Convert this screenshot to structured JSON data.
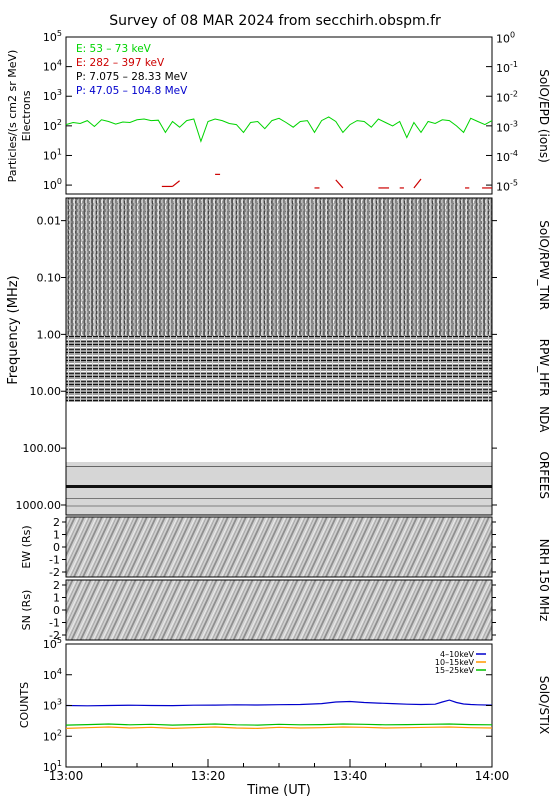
{
  "title": "Survey of 08 MAR 2024 from secchirh.obspm.fr",
  "xlabel": "Time (UT)",
  "x_ticks": [
    "13:00",
    "13:20",
    "13:40",
    "14:00"
  ],
  "colors": {
    "green": "#00d400",
    "red": "#cc0000",
    "black": "#000000",
    "blue": "#0000cc",
    "orange": "#ff9900",
    "stix_green": "#00c000"
  },
  "chart_data": [
    {
      "type": "line",
      "panel": "epd",
      "ylabel": "Particles/(s cm2 sr MeV)",
      "ylabel2": "Electrons",
      "right_label": "SolO/EPD (ions)",
      "y_log": true,
      "ylim": [
        0.5,
        100000
      ],
      "y_ticks": [
        "10^0",
        "10^1",
        "10^2",
        "10^3",
        "10^4",
        "10^5"
      ],
      "y2_ticks": [
        "10^-5",
        "10^-4",
        "10^-3",
        "10^-2",
        "10^-1",
        "10^0"
      ],
      "legend": [
        {
          "label": "E: 53 – 73 keV",
          "color": "#00d400"
        },
        {
          "label": "E: 282 – 397 keV",
          "color": "#cc0000"
        },
        {
          "label": "P: 7.075 – 28.33 MeV",
          "color": "#000000"
        },
        {
          "label": "P: 47.05 – 104.8 MeV",
          "color": "#0000cc"
        }
      ],
      "series": [
        {
          "name": "E: 53 – 73 keV",
          "color": "#00d400",
          "x_minutes": [
            0,
            1,
            2,
            3,
            4,
            5,
            6,
            7,
            8,
            9,
            10,
            11,
            12,
            13,
            14,
            15,
            16,
            17,
            18,
            19,
            20,
            21,
            22,
            23,
            24,
            25,
            26,
            27,
            28,
            29,
            30,
            31,
            32,
            33,
            34,
            35,
            36,
            37,
            38,
            39,
            40,
            41,
            42,
            43,
            44,
            45,
            46,
            47,
            48,
            49,
            50,
            51,
            52,
            53,
            54,
            55,
            56,
            57,
            58,
            59,
            60
          ],
          "values": [
            110,
            130,
            120,
            150,
            95,
            160,
            140,
            115,
            135,
            130,
            160,
            170,
            150,
            155,
            60,
            140,
            90,
            150,
            170,
            30,
            140,
            170,
            150,
            120,
            110,
            60,
            130,
            140,
            80,
            150,
            180,
            130,
            90,
            140,
            150,
            60,
            150,
            200,
            140,
            60,
            110,
            150,
            140,
            90,
            170,
            130,
            100,
            140,
            40,
            130,
            60,
            140,
            120,
            160,
            150,
            100,
            60,
            180,
            140,
            110,
            150
          ]
        },
        {
          "name": "E: 282 – 397 keV",
          "color": "#cc0000",
          "segments": [
            {
              "x": [
                13.5,
                15
              ],
              "y": [
                0.9,
                0.9
              ]
            },
            {
              "x": [
                15,
                16
              ],
              "y": [
                0.9,
                1.4
              ]
            },
            {
              "x": [
                21,
                21.7
              ],
              "y": [
                2.3,
                2.3
              ]
            },
            {
              "x": [
                35,
                35.7
              ],
              "y": [
                0.8,
                0.8
              ]
            },
            {
              "x": [
                38,
                39
              ],
              "y": [
                1.5,
                0.8
              ]
            },
            {
              "x": [
                44,
                45.5
              ],
              "y": [
                0.8,
                0.8
              ]
            },
            {
              "x": [
                47,
                47.6
              ],
              "y": [
                0.8,
                0.8
              ]
            },
            {
              "x": [
                49,
                50
              ],
              "y": [
                0.8,
                1.6
              ]
            },
            {
              "x": [
                56.2,
                56.8
              ],
              "y": [
                0.8,
                0.8
              ]
            },
            {
              "x": [
                58.6,
                60
              ],
              "y": [
                0.8,
                0.8
              ]
            }
          ]
        }
      ]
    },
    {
      "type": "heatmap",
      "panel": "spectrogram",
      "ylabel": "Frequency (MHz)",
      "y_log": true,
      "ylim": [
        1500,
        0.004
      ],
      "y_ticks": [
        "0.01",
        "0.10",
        "1.00",
        "10.00",
        "100.00",
        "1000.00"
      ],
      "bands": [
        {
          "label": "SolO/RPW_TNR",
          "f_range": [
            0.004,
            0.92
          ]
        },
        {
          "label": "RPW_HFR",
          "f_range": [
            0.92,
            16
          ]
        },
        {
          "label": "NDA",
          "f_range": [
            16,
            60
          ]
        },
        {
          "label": "ORFEES",
          "f_range": [
            60,
            1500
          ]
        }
      ]
    },
    {
      "type": "heatmap",
      "panel": "nrh_ew",
      "ylabel": "EW (Rs)",
      "ylim": [
        -2.4,
        2.4
      ],
      "y_ticks": [
        "2",
        "1",
        "0",
        "-1",
        "-2"
      ],
      "right_label": "NRH 150 MHz"
    },
    {
      "type": "heatmap",
      "panel": "nrh_sn",
      "ylabel": "SN (Rs)",
      "ylim": [
        -2.4,
        2.4
      ],
      "y_ticks": [
        "2",
        "1",
        "0",
        "-1",
        "-2"
      ]
    },
    {
      "type": "line",
      "panel": "stix",
      "ylabel": "COUNTS",
      "right_label": "SolO/STIX",
      "y_log": true,
      "ylim": [
        10,
        100000
      ],
      "y_ticks": [
        "10^1",
        "10^2",
        "10^3",
        "10^4",
        "10^5"
      ],
      "series": [
        {
          "name": "4–10keV",
          "color": "#0000cc",
          "x_minutes": [
            0,
            3,
            6,
            9,
            12,
            15,
            18,
            21,
            24,
            27,
            30,
            33,
            36,
            38,
            40,
            42,
            44,
            46,
            48,
            50,
            52,
            53,
            54,
            55,
            56,
            57,
            58,
            60
          ],
          "values": [
            1000,
            980,
            1000,
            1020,
            1000,
            990,
            1020,
            1030,
            1050,
            1040,
            1060,
            1080,
            1150,
            1300,
            1350,
            1250,
            1200,
            1150,
            1100,
            1080,
            1100,
            1300,
            1500,
            1250,
            1120,
            1080,
            1050,
            1030
          ]
        },
        {
          "name": "10–15keV",
          "color": "#ff9900",
          "x_minutes": [
            0,
            3,
            6,
            9,
            12,
            15,
            18,
            21,
            24,
            27,
            30,
            33,
            36,
            39,
            42,
            45,
            48,
            51,
            54,
            57,
            60
          ],
          "values": [
            180,
            190,
            200,
            185,
            195,
            180,
            190,
            200,
            185,
            180,
            195,
            185,
            190,
            200,
            195,
            185,
            190,
            195,
            200,
            190,
            185
          ]
        },
        {
          "name": "15–25keV",
          "color": "#00c000",
          "x_minutes": [
            0,
            3,
            6,
            9,
            12,
            15,
            18,
            21,
            24,
            27,
            30,
            33,
            36,
            39,
            42,
            45,
            48,
            51,
            54,
            57,
            60
          ],
          "values": [
            230,
            240,
            250,
            235,
            245,
            230,
            240,
            250,
            235,
            230,
            245,
            235,
            240,
            250,
            245,
            235,
            240,
            245,
            250,
            240,
            235
          ]
        }
      ]
    }
  ]
}
